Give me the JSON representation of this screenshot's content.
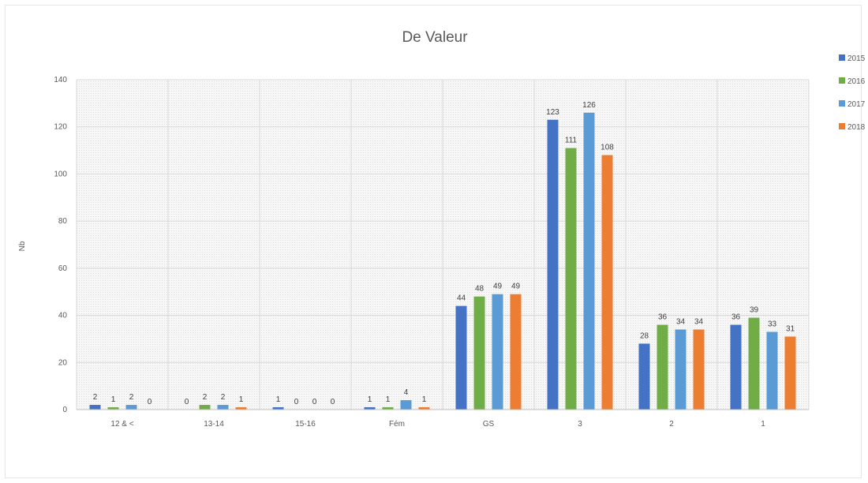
{
  "chart_data": {
    "type": "bar",
    "title": "De Valeur",
    "ylabel": "Nb",
    "xlabel": "",
    "ylim": [
      0,
      140
    ],
    "ytick_step": 20,
    "grid": true,
    "legend_position": "right",
    "categories": [
      "12 & <",
      "13-14",
      "15-16",
      "Fém",
      "GS",
      "3",
      "2",
      "1"
    ],
    "series": [
      {
        "name": "2015",
        "color": "#4472C4",
        "values": [
          2,
          0,
          1,
          1,
          44,
          123,
          28,
          36
        ]
      },
      {
        "name": "2016",
        "color": "#70AD47",
        "values": [
          1,
          2,
          0,
          1,
          48,
          111,
          36,
          39
        ]
      },
      {
        "name": "2017",
        "color": "#5B9BD5",
        "values": [
          2,
          2,
          0,
          4,
          49,
          126,
          34,
          33
        ]
      },
      {
        "name": "2018",
        "color": "#ED7D31",
        "values": [
          0,
          1,
          0,
          1,
          49,
          108,
          34,
          31
        ]
      }
    ]
  }
}
